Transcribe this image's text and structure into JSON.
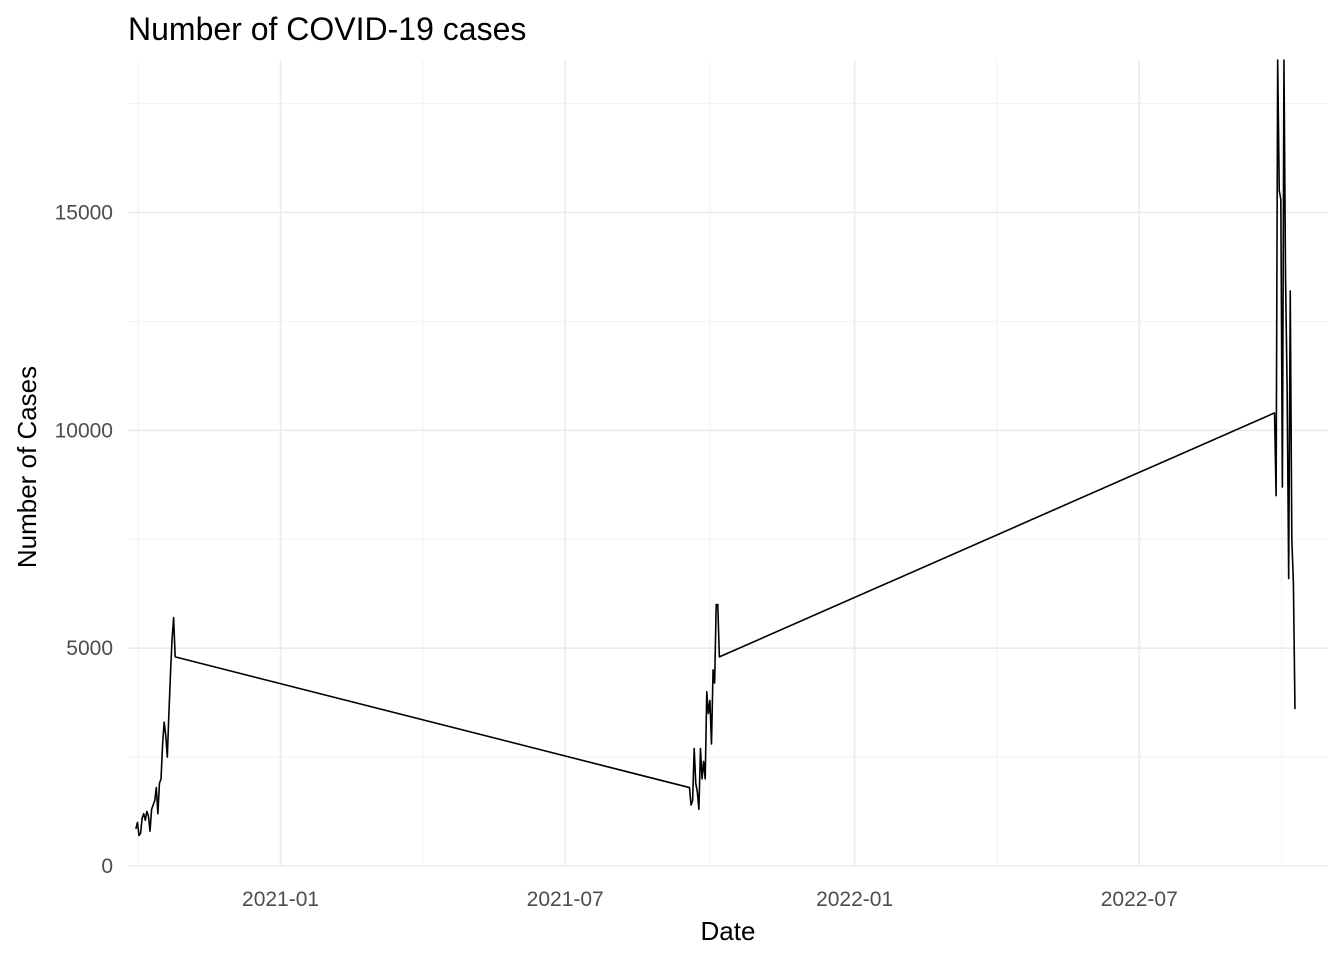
{
  "chart_data": {
    "type": "line",
    "title": "Number of COVID-19 cases",
    "xlabel": "Date",
    "ylabel": "Number of Cases",
    "x_ticks": [
      "2021-01-01",
      "2021-07-01",
      "2022-01-01",
      "2022-07-01"
    ],
    "x_tick_labels": [
      "2021-01",
      "2021-07",
      "2022-01",
      "2022-07"
    ],
    "y_ticks": [
      0,
      5000,
      10000,
      15000
    ],
    "y_tick_labels": [
      "0",
      "5000",
      "10000",
      "15000"
    ],
    "xlim": [
      "2020-09-26",
      "2022-10-29"
    ],
    "ylim": [
      0,
      18500
    ],
    "grid": true,
    "legend": "none",
    "line_color": "#000000",
    "series": [
      {
        "values": [
          [
            "2020-10-01",
            850
          ],
          [
            "2020-10-02",
            1000
          ],
          [
            "2020-10-03",
            700
          ],
          [
            "2020-10-04",
            750
          ],
          [
            "2020-10-05",
            1100
          ],
          [
            "2020-10-06",
            1200
          ],
          [
            "2020-10-07",
            1050
          ],
          [
            "2020-10-08",
            1250
          ],
          [
            "2020-10-09",
            1150
          ],
          [
            "2020-10-10",
            800
          ],
          [
            "2020-10-11",
            1300
          ],
          [
            "2020-10-12",
            1400
          ],
          [
            "2020-10-13",
            1500
          ],
          [
            "2020-10-14",
            1800
          ],
          [
            "2020-10-15",
            1200
          ],
          [
            "2020-10-16",
            1900
          ],
          [
            "2020-10-17",
            2000
          ],
          [
            "2020-10-18",
            2800
          ],
          [
            "2020-10-19",
            3300
          ],
          [
            "2020-10-20",
            3000
          ],
          [
            "2020-10-21",
            2500
          ],
          [
            "2020-10-22",
            3500
          ],
          [
            "2020-10-23",
            4400
          ],
          [
            "2020-10-24",
            5200
          ],
          [
            "2020-10-25",
            5700
          ],
          [
            "2020-10-26",
            4800
          ],
          [
            "2021-09-18",
            1800
          ],
          [
            "2021-09-19",
            1400
          ],
          [
            "2021-09-20",
            1500
          ],
          [
            "2021-09-21",
            2700
          ],
          [
            "2021-09-22",
            1900
          ],
          [
            "2021-09-23",
            1700
          ],
          [
            "2021-09-24",
            1300
          ],
          [
            "2021-09-25",
            2700
          ],
          [
            "2021-09-26",
            2000
          ],
          [
            "2021-09-27",
            2400
          ],
          [
            "2021-09-28",
            2000
          ],
          [
            "2021-09-29",
            4000
          ],
          [
            "2021-09-30",
            3500
          ],
          [
            "2021-10-01",
            3800
          ],
          [
            "2021-10-02",
            2800
          ],
          [
            "2021-10-03",
            4500
          ],
          [
            "2021-10-04",
            4200
          ],
          [
            "2021-10-05",
            6000
          ],
          [
            "2021-10-06",
            6000
          ],
          [
            "2021-10-07",
            4800
          ],
          [
            "2022-09-25",
            10400
          ],
          [
            "2022-09-26",
            8500
          ],
          [
            "2022-09-27",
            18500
          ],
          [
            "2022-09-28",
            15500
          ],
          [
            "2022-09-29",
            15300
          ],
          [
            "2022-09-30",
            8700
          ],
          [
            "2022-10-01",
            18500
          ],
          [
            "2022-10-02",
            13500
          ],
          [
            "2022-10-03",
            11000
          ],
          [
            "2022-10-04",
            6600
          ],
          [
            "2022-10-05",
            13200
          ],
          [
            "2022-10-06",
            7500
          ],
          [
            "2022-10-07",
            6500
          ],
          [
            "2022-10-08",
            3600
          ]
        ]
      }
    ]
  }
}
